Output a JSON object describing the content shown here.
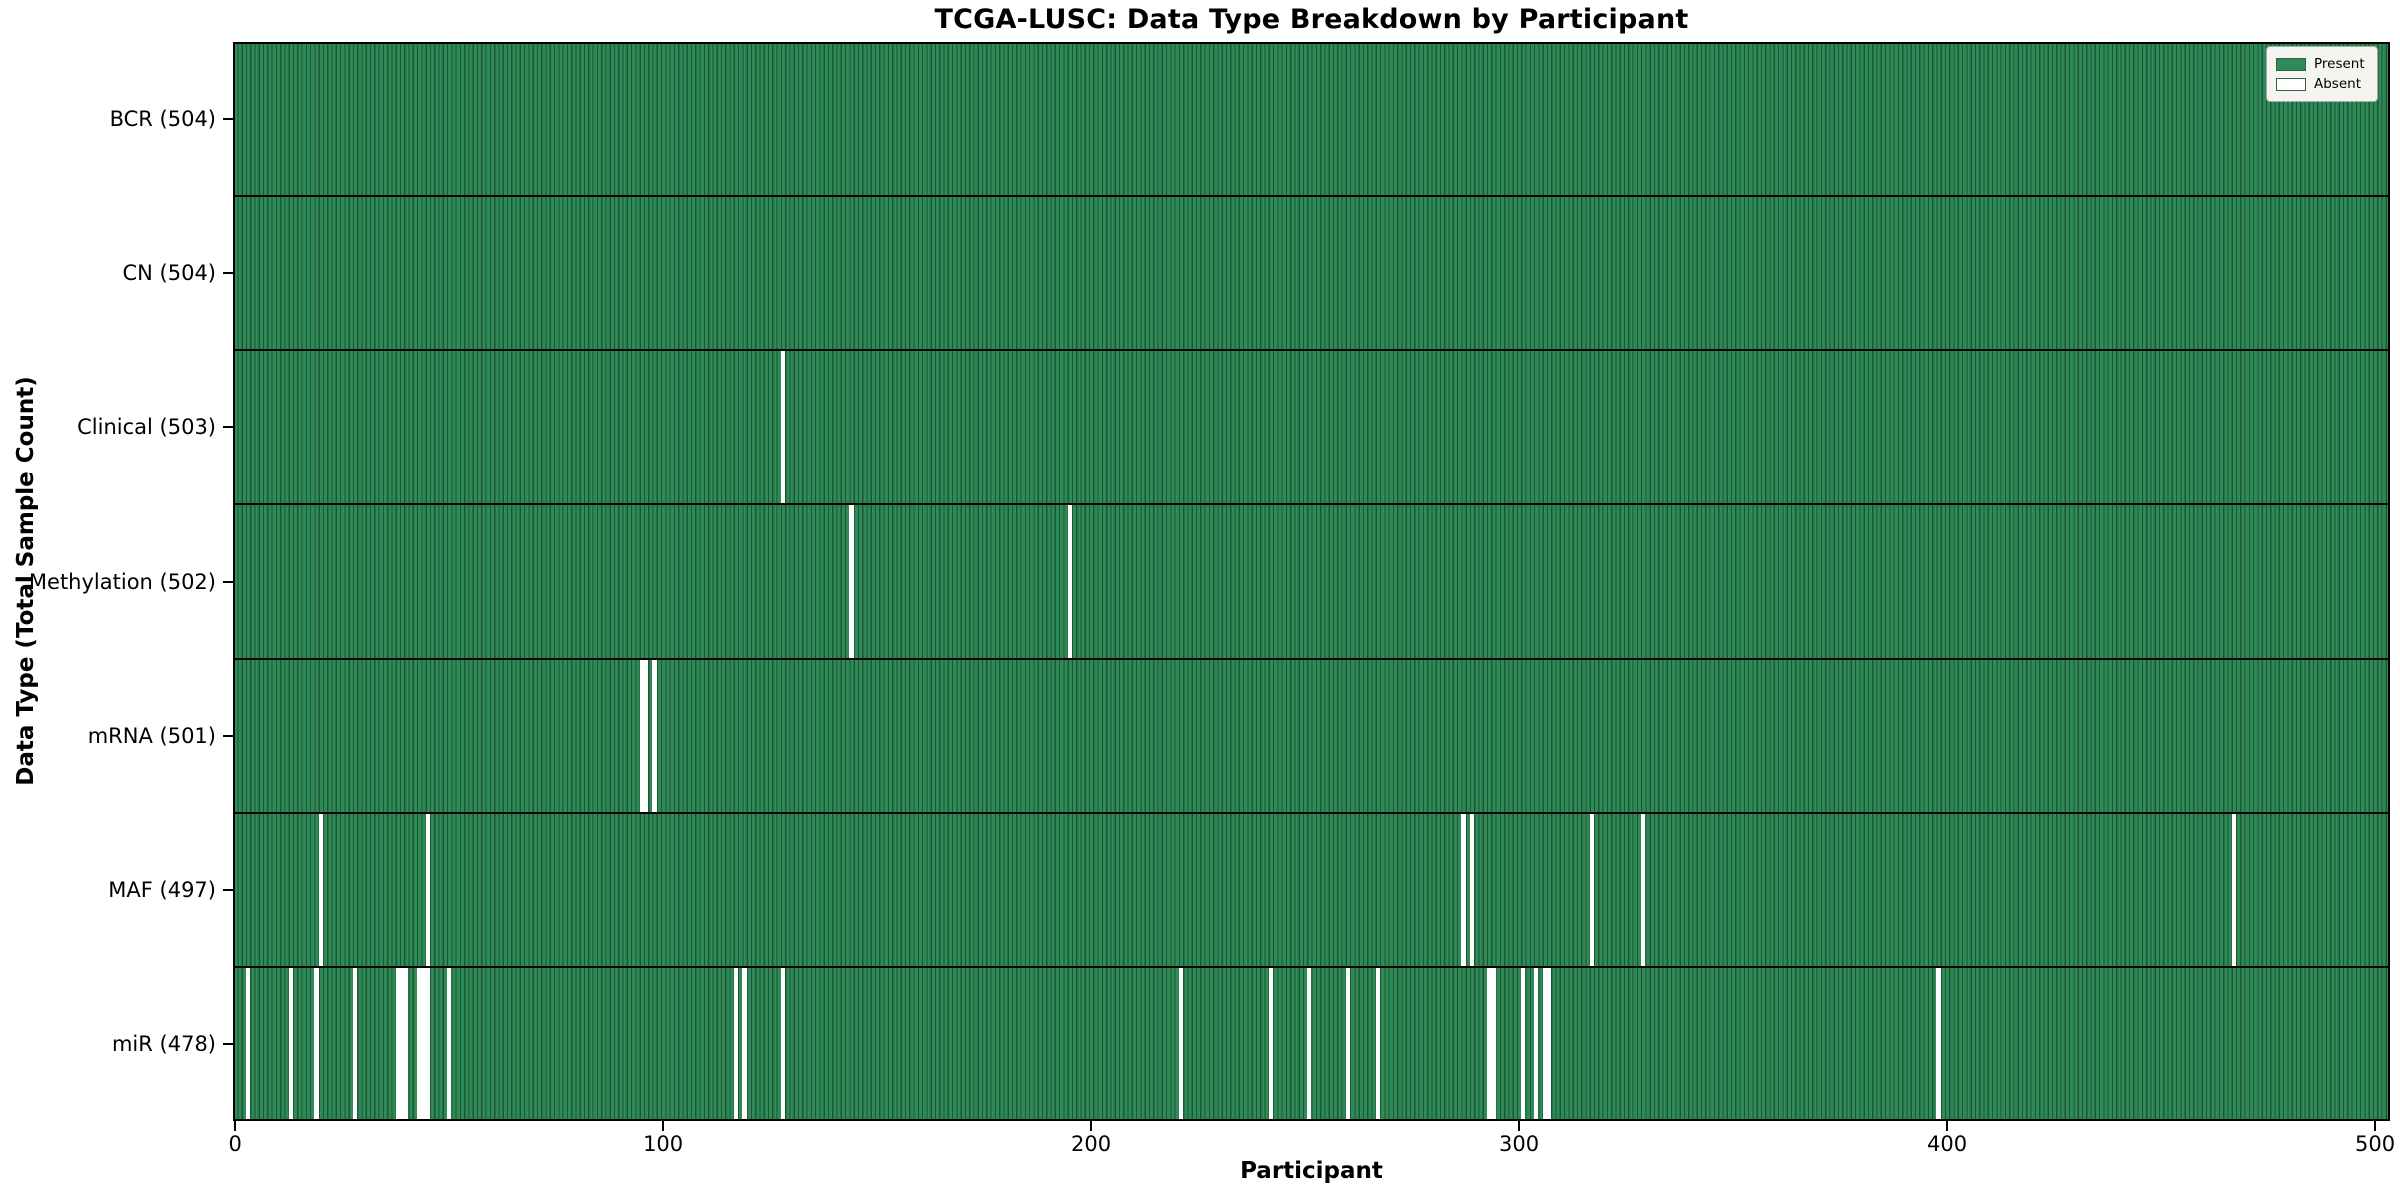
{
  "chart_data": {
    "type": "heatmap",
    "title": "TCGA-LUSC: Data Type Breakdown by Participant",
    "xlabel": "Participant",
    "ylabel": "Data Type (Total Sample Count)",
    "x_ticks": [
      0,
      100,
      200,
      300,
      400,
      500
    ],
    "x_range": [
      0,
      504
    ],
    "n_participants": 504,
    "grid": false,
    "legend_position": "upper right",
    "colors": {
      "present": "#2e8b57",
      "present_edge": "#1d5635",
      "absent": "#ffffff",
      "row_separator": "#000000",
      "legend_bg": "#f4f4f0"
    },
    "legend": [
      {
        "label": "Present",
        "color": "#2e8b57"
      },
      {
        "label": "Absent",
        "color": "#ffffff"
      }
    ],
    "rows": [
      {
        "label": "BCR (504)",
        "data_type": "BCR",
        "total_samples": 504,
        "absent_participants": []
      },
      {
        "label": "CN (504)",
        "data_type": "CN",
        "total_samples": 504,
        "absent_participants": []
      },
      {
        "label": "Clinical (503)",
        "data_type": "Clinical",
        "total_samples": 503,
        "absent_participants": [
          128
        ]
      },
      {
        "label": "Methylation (502)",
        "data_type": "Methylation",
        "total_samples": 502,
        "absent_participants": [
          144,
          195
        ]
      },
      {
        "label": "mRNA (501)",
        "data_type": "mRNA",
        "total_samples": 501,
        "absent_participants": [
          95,
          96,
          98
        ]
      },
      {
        "label": "MAF (497)",
        "data_type": "MAF",
        "total_samples": 497,
        "absent_participants": [
          20,
          45,
          287,
          289,
          317,
          329,
          467
        ]
      },
      {
        "label": "miR (478)",
        "data_type": "miR",
        "total_samples": 478,
        "absent_participants": [
          3,
          13,
          19,
          28,
          38,
          39,
          40,
          43,
          44,
          45,
          50,
          117,
          119,
          128,
          221,
          242,
          251,
          260,
          267,
          293,
          294,
          301,
          304,
          306,
          307,
          398
        ]
      }
    ]
  }
}
